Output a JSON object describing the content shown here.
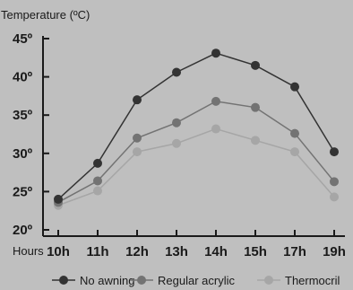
{
  "chart_data": {
    "type": "line",
    "title": "",
    "ylabel": "Temperature (ºC)",
    "xlabel": "Hours",
    "categories": [
      "10h",
      "11h",
      "12h",
      "13h",
      "14h",
      "15h",
      "17h",
      "19h"
    ],
    "y_ticks": [
      "20º",
      "25º",
      "30º",
      "35º",
      "40º",
      "45º"
    ],
    "y_tick_values": [
      20,
      25,
      30,
      35,
      40,
      45
    ],
    "ylim": [
      20,
      45
    ],
    "grid": false,
    "legend_position": "bottom",
    "series": [
      {
        "name": "No awning",
        "color": "#333333",
        "values": [
          24,
          28.7,
          37,
          40.6,
          43.1,
          41.5,
          38.7,
          30.2
        ]
      },
      {
        "name": "Regular acrylic",
        "color": "#737373",
        "values": [
          23.6,
          26.4,
          32,
          34,
          36.8,
          36,
          32.6,
          26.3
        ]
      },
      {
        "name": "Thermocril",
        "color": "#a6a6a6",
        "values": [
          23.2,
          25.1,
          30.2,
          31.3,
          33.2,
          31.7,
          30.2,
          24.3
        ]
      }
    ]
  }
}
